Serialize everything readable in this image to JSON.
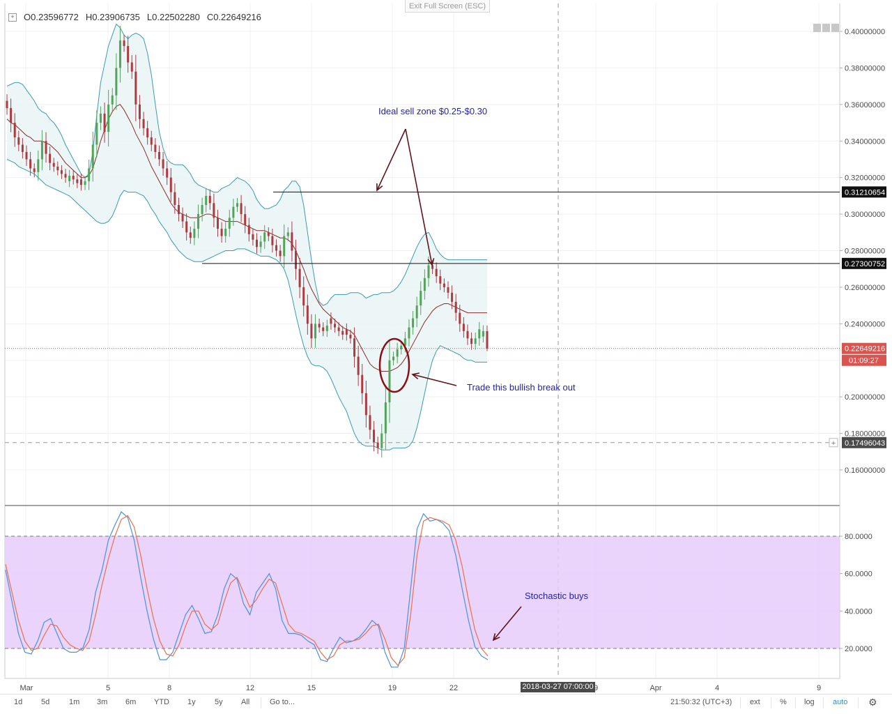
{
  "header": {
    "open_label": "O",
    "open": "0.23596772",
    "high_label": "H",
    "high": "0.23906735",
    "low_label": "L",
    "low": "0.22502280",
    "close_label": "C",
    "close": "0.22649216",
    "expand_icon": "plus-square-icon"
  },
  "exit_fullscreen": "Exit Full Screen (ESC)",
  "toolbar": {
    "ranges": [
      "1d",
      "5d",
      "1m",
      "3m",
      "6m",
      "YTD",
      "1y",
      "5y",
      "All"
    ],
    "goto": "Go to...",
    "clock": "21:50:32 (UTC+3)",
    "ext": "ext",
    "percent": "%",
    "log": "log",
    "auto": "auto",
    "settings_icon": "gear-icon"
  },
  "crosshair_time": "2018-03-27 07:00:00",
  "colors": {
    "bull": "#53a35b",
    "bear": "#ab3b41",
    "band": "#3a9bb0",
    "basis": "#8b2a2a",
    "stoch_k": "#4a90e2",
    "stoch_d": "#e8704a",
    "stoch_fill": "#e6cdfb",
    "annotation": "#1f1fb4",
    "arrow": "#5c1418"
  },
  "chart_data": [
    {
      "type": "candlestick",
      "title": "",
      "x_labels": [
        "Mar",
        "5",
        "8",
        "12",
        "15",
        "19",
        "22",
        "9",
        "Apr",
        "4",
        "9"
      ],
      "ylim": [
        0.14,
        0.41
      ],
      "y_ticks": [
        0.16,
        0.18,
        0.2,
        0.22,
        0.24,
        0.26,
        0.28,
        0.3,
        0.32,
        0.34,
        0.36,
        0.38,
        0.4
      ],
      "y_tick_labels": [
        "0.16000000",
        "0.18000000",
        "0.20000000",
        "",
        "0.24000000",
        "0.26000000",
        "0.28000000",
        "0.30000000",
        "0.32000000",
        "0.34000000",
        "0.36000000",
        "0.38000000",
        "0.40000000"
      ],
      "grid": true,
      "close_series": [
        0.358,
        0.35,
        0.342,
        0.338,
        0.334,
        0.33,
        0.325,
        0.323,
        0.33,
        0.34,
        0.333,
        0.328,
        0.326,
        0.324,
        0.322,
        0.32,
        0.321,
        0.319,
        0.317,
        0.316,
        0.318,
        0.325,
        0.338,
        0.35,
        0.355,
        0.345,
        0.36,
        0.365,
        0.38,
        0.395,
        0.392,
        0.383,
        0.378,
        0.36,
        0.352,
        0.347,
        0.342,
        0.338,
        0.334,
        0.33,
        0.325,
        0.32,
        0.312,
        0.305,
        0.3,
        0.296,
        0.29,
        0.287,
        0.292,
        0.3,
        0.305,
        0.31,
        0.306,
        0.298,
        0.292,
        0.288,
        0.292,
        0.298,
        0.304,
        0.306,
        0.3,
        0.294,
        0.289,
        0.286,
        0.282,
        0.285,
        0.29,
        0.288,
        0.283,
        0.28,
        0.277,
        0.288,
        0.29,
        0.28,
        0.27,
        0.26,
        0.25,
        0.24,
        0.232,
        0.24,
        0.238,
        0.236,
        0.239,
        0.24,
        0.238,
        0.236,
        0.234,
        0.234,
        0.232,
        0.222,
        0.212,
        0.202,
        0.19,
        0.182,
        0.175,
        0.172,
        0.18,
        0.197,
        0.22,
        0.222,
        0.226,
        0.228,
        0.232,
        0.238,
        0.243,
        0.25,
        0.258,
        0.265,
        0.272,
        0.27,
        0.266,
        0.262,
        0.26,
        0.257,
        0.252,
        0.246,
        0.24,
        0.236,
        0.232,
        0.229,
        0.232,
        0.237,
        0.236,
        0.226
      ],
      "last_candle": {
        "open": 0.23596772,
        "high": 0.23906735,
        "low": 0.2250228,
        "close": 0.22649216
      },
      "bollinger_basis": [
        0.352,
        0.35,
        0.349,
        0.347,
        0.345,
        0.343,
        0.342,
        0.34,
        0.34,
        0.34,
        0.339,
        0.338,
        0.336,
        0.334,
        0.331,
        0.328,
        0.326,
        0.324,
        0.322,
        0.32,
        0.32,
        0.321,
        0.325,
        0.332,
        0.34,
        0.346,
        0.352,
        0.356,
        0.359,
        0.36,
        0.357,
        0.353,
        0.349,
        0.344,
        0.34,
        0.336,
        0.331,
        0.326,
        0.322,
        0.318,
        0.314,
        0.31,
        0.306,
        0.303,
        0.301,
        0.3,
        0.299,
        0.298,
        0.298,
        0.298,
        0.299,
        0.3,
        0.3,
        0.299,
        0.298,
        0.297,
        0.296,
        0.296,
        0.296,
        0.296,
        0.295,
        0.294,
        0.293,
        0.292,
        0.291,
        0.291,
        0.291,
        0.29,
        0.289,
        0.288,
        0.287,
        0.287,
        0.286,
        0.284,
        0.28,
        0.275,
        0.27,
        0.264,
        0.259,
        0.255,
        0.251,
        0.248,
        0.246,
        0.244,
        0.242,
        0.24,
        0.238,
        0.237,
        0.236,
        0.234,
        0.23,
        0.226,
        0.222,
        0.218,
        0.216,
        0.215,
        0.214,
        0.214,
        0.214,
        0.215,
        0.216,
        0.218,
        0.221,
        0.225,
        0.229,
        0.233,
        0.237,
        0.241,
        0.244,
        0.247,
        0.249,
        0.25,
        0.251,
        0.251,
        0.25,
        0.249,
        0.248,
        0.247,
        0.246,
        0.246,
        0.246,
        0.246,
        0.246,
        0.246
      ],
      "bollinger_upper": [
        0.37,
        0.371,
        0.372,
        0.372,
        0.371,
        0.368,
        0.365,
        0.362,
        0.358,
        0.356,
        0.355,
        0.352,
        0.35,
        0.347,
        0.343,
        0.338,
        0.334,
        0.33,
        0.326,
        0.322,
        0.32,
        0.322,
        0.334,
        0.354,
        0.372,
        0.382,
        0.392,
        0.398,
        0.404,
        0.402,
        0.398,
        0.396,
        0.398,
        0.399,
        0.398,
        0.396,
        0.388,
        0.376,
        0.36,
        0.345,
        0.336,
        0.33,
        0.328,
        0.327,
        0.327,
        0.327,
        0.325,
        0.322,
        0.318,
        0.316,
        0.315,
        0.314,
        0.313,
        0.312,
        0.312,
        0.314,
        0.315,
        0.316,
        0.318,
        0.32,
        0.319,
        0.318,
        0.316,
        0.313,
        0.308,
        0.305,
        0.303,
        0.303,
        0.304,
        0.305,
        0.308,
        0.313,
        0.315,
        0.318,
        0.318,
        0.315,
        0.305,
        0.29,
        0.275,
        0.262,
        0.252,
        0.25,
        0.251,
        0.254,
        0.256,
        0.256,
        0.256,
        0.256,
        0.257,
        0.257,
        0.257,
        0.256,
        0.254,
        0.255,
        0.256,
        0.256,
        0.257,
        0.257,
        0.257,
        0.258,
        0.26,
        0.263,
        0.267,
        0.272,
        0.277,
        0.282,
        0.286,
        0.289,
        0.29,
        0.286,
        0.281,
        0.278,
        0.276,
        0.275,
        0.275,
        0.275,
        0.275,
        0.275,
        0.275,
        0.275,
        0.275,
        0.275,
        0.275,
        0.275
      ],
      "bollinger_lower": [
        0.33,
        0.329,
        0.328,
        0.326,
        0.325,
        0.324,
        0.323,
        0.322,
        0.32,
        0.318,
        0.316,
        0.315,
        0.314,
        0.313,
        0.312,
        0.311,
        0.31,
        0.308,
        0.306,
        0.304,
        0.302,
        0.3,
        0.298,
        0.296,
        0.295,
        0.295,
        0.296,
        0.299,
        0.304,
        0.31,
        0.313,
        0.312,
        0.312,
        0.312,
        0.311,
        0.31,
        0.307,
        0.303,
        0.3,
        0.296,
        0.293,
        0.29,
        0.286,
        0.283,
        0.28,
        0.278,
        0.276,
        0.275,
        0.274,
        0.274,
        0.274,
        0.275,
        0.276,
        0.277,
        0.278,
        0.279,
        0.28,
        0.28,
        0.28,
        0.281,
        0.281,
        0.281,
        0.28,
        0.279,
        0.278,
        0.277,
        0.277,
        0.277,
        0.276,
        0.275,
        0.273,
        0.27,
        0.264,
        0.255,
        0.245,
        0.236,
        0.228,
        0.222,
        0.218,
        0.217,
        0.217,
        0.216,
        0.214,
        0.21,
        0.205,
        0.2,
        0.196,
        0.192,
        0.186,
        0.18,
        0.176,
        0.174,
        0.173,
        0.173,
        0.173,
        0.172,
        0.171,
        0.171,
        0.171,
        0.172,
        0.172,
        0.172,
        0.172,
        0.173,
        0.176,
        0.183,
        0.192,
        0.202,
        0.212,
        0.22,
        0.225,
        0.228,
        0.227,
        0.226,
        0.225,
        0.224,
        0.223,
        0.221,
        0.22,
        0.22,
        0.219,
        0.219,
        0.219,
        0.219
      ],
      "price_labels": [
        {
          "value": 0.31210654,
          "label": "0.31210654",
          "style": "level"
        },
        {
          "value": 0.27300752,
          "label": "0.27300752",
          "style": "level"
        },
        {
          "value": 0.22649216,
          "label": "0.22649216",
          "style": "last"
        },
        {
          "value": 0.17496043,
          "label": "0.17496043",
          "style": "crosshair"
        }
      ],
      "countdown": "01:09:27",
      "annotations": [
        {
          "text": "Ideal sell zone $0.25-$0.30"
        },
        {
          "text": "Trade this bullish break out"
        }
      ]
    },
    {
      "type": "line",
      "title": "",
      "ylim": [
        5,
        98
      ],
      "y_ticks": [
        20,
        40,
        60,
        80
      ],
      "y_tick_labels": [
        "20.0000",
        "40.0000",
        "60.0000",
        "80.0000"
      ],
      "overbought": 80,
      "oversold": 20,
      "series": [
        {
          "values": [
            62,
            45,
            28,
            18,
            17,
            24,
            34,
            36,
            28,
            20,
            18,
            18,
            20,
            30,
            50,
            62,
            78,
            86,
            93,
            90,
            78,
            58,
            40,
            25,
            14,
            14,
            18,
            28,
            38,
            43,
            36,
            28,
            29,
            38,
            52,
            60,
            57,
            44,
            38,
            50,
            55,
            60,
            52,
            35,
            28,
            28,
            27,
            24,
            22,
            14,
            13,
            20,
            26,
            23,
            24,
            26,
            30,
            35,
            32,
            18,
            10,
            10,
            20,
            52,
            84,
            92,
            88,
            89,
            87,
            83,
            70,
            52,
            35,
            21,
            16,
            14
          ]
        },
        {
          "values": [
            65,
            50,
            35,
            24,
            19,
            20,
            27,
            33,
            32,
            26,
            22,
            20,
            19,
            24,
            38,
            54,
            68,
            80,
            89,
            91,
            85,
            70,
            52,
            36,
            24,
            17,
            16,
            22,
            32,
            40,
            40,
            33,
            30,
            33,
            45,
            55,
            58,
            50,
            42,
            46,
            52,
            57,
            55,
            44,
            33,
            29,
            28,
            26,
            24,
            18,
            14,
            16,
            22,
            24,
            24,
            25,
            28,
            32,
            33,
            25,
            15,
            11,
            15,
            38,
            70,
            88,
            90,
            89,
            88,
            86,
            78,
            64,
            46,
            30,
            20,
            16
          ]
        }
      ],
      "annotations": [
        {
          "text": "Stochastic buys"
        }
      ]
    }
  ]
}
